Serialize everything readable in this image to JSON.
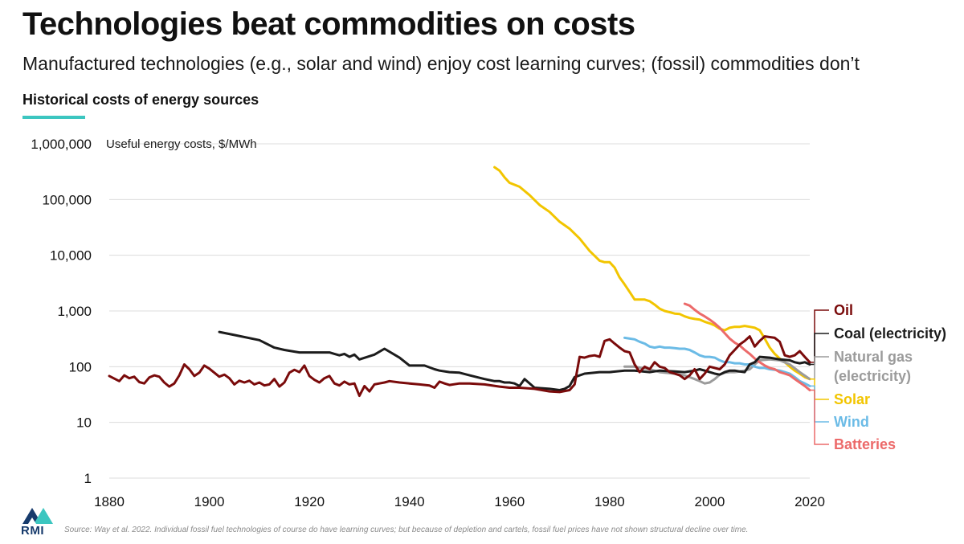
{
  "title": "Technologies beat commodities on costs",
  "subtitle": "Manufactured technologies (e.g., solar and wind) enjoy cost learning curves; (fossil) commodities don’t",
  "section_title": "Historical costs of energy sources",
  "accent_color": "#3cc6c0",
  "logo_text": "RMI",
  "source": "Source: Way et al. 2022. Individual fossil fuel technologies of course do have learning curves; but because of depletion and cartels, fossil fuel prices have not shown structural decline over time.",
  "chart_data": {
    "type": "line",
    "title": "Historical costs of energy sources",
    "ylabel": "Useful energy costs, $/MWh",
    "xlabel": "",
    "yscale": "log",
    "xlim": [
      1880,
      2020
    ],
    "ylim": [
      1,
      1000000
    ],
    "grid": "horizontal",
    "legend": "end-of-line labels at right",
    "x_ticks": [
      "1880",
      "1900",
      "1920",
      "1940",
      "1960",
      "1980",
      "2000",
      "2020"
    ],
    "y_ticks": [
      "1,000,000",
      "100,000",
      "10,000",
      "1,000",
      "100",
      "10",
      "1"
    ],
    "y_tick_values": [
      1000000,
      100000,
      10000,
      1000,
      100,
      10,
      1
    ],
    "series": [
      {
        "name": "Oil",
        "color": "#7a0b0b",
        "x": [
          1880,
          1882,
          1883,
          1884,
          1885,
          1886,
          1887,
          1888,
          1889,
          1890,
          1891,
          1892,
          1893,
          1894,
          1895,
          1896,
          1897,
          1898,
          1899,
          1900,
          1902,
          1903,
          1904,
          1905,
          1906,
          1907,
          1908,
          1909,
          1910,
          1911,
          1912,
          1913,
          1914,
          1915,
          1916,
          1917,
          1918,
          1919,
          1920,
          1921,
          1922,
          1923,
          1924,
          1925,
          1926,
          1927,
          1928,
          1929,
          1930,
          1931,
          1932,
          1933,
          1934,
          1935,
          1936,
          1938,
          1940,
          1942,
          1944,
          1945,
          1946,
          1947,
          1948,
          1950,
          1952,
          1955,
          1958,
          1960,
          1962,
          1965,
          1968,
          1970,
          1972,
          1973,
          1974,
          1975,
          1976,
          1977,
          1978,
          1979,
          1980,
          1981,
          1982,
          1983,
          1984,
          1985,
          1986,
          1987,
          1988,
          1989,
          1990,
          1991,
          1992,
          1993,
          1994,
          1995,
          1996,
          1997,
          1998,
          1999,
          2000,
          2001,
          2002,
          2003,
          2004,
          2005,
          2006,
          2007,
          2008,
          2009,
          2010,
          2011,
          2012,
          2013,
          2014,
          2015,
          2016,
          2017,
          2018,
          2019,
          2020
        ],
        "values": [
          68,
          55,
          70,
          62,
          66,
          53,
          50,
          64,
          70,
          66,
          52,
          44,
          50,
          70,
          110,
          90,
          68,
          78,
          105,
          92,
          66,
          72,
          62,
          48,
          56,
          52,
          56,
          48,
          52,
          46,
          48,
          60,
          44,
          52,
          78,
          88,
          80,
          105,
          68,
          58,
          52,
          62,
          68,
          50,
          46,
          54,
          48,
          50,
          30,
          45,
          36,
          48,
          50,
          52,
          55,
          52,
          50,
          48,
          46,
          42,
          54,
          50,
          47,
          50,
          50,
          48,
          44,
          42,
          42,
          40,
          36,
          35,
          38,
          48,
          150,
          145,
          155,
          160,
          150,
          290,
          310,
          260,
          220,
          190,
          180,
          110,
          80,
          100,
          90,
          120,
          100,
          95,
          80,
          75,
          70,
          60,
          70,
          90,
          60,
          75,
          100,
          95,
          90,
          110,
          160,
          200,
          250,
          290,
          350,
          230,
          290,
          350,
          340,
          330,
          280,
          160,
          150,
          160,
          190,
          150,
          120
        ]
      },
      {
        "name": "Coal (electricity)",
        "color": "#1c1c1c",
        "x": [
          1902,
          1905,
          1910,
          1913,
          1915,
          1918,
          1920,
          1922,
          1924,
          1925,
          1926,
          1927,
          1928,
          1929,
          1930,
          1933,
          1935,
          1938,
          1940,
          1943,
          1945,
          1946,
          1948,
          1950,
          1952,
          1955,
          1957,
          1958,
          1959,
          1960,
          1961,
          1962,
          1963,
          1965,
          1968,
          1970,
          1971,
          1972,
          1973,
          1975,
          1978,
          1980,
          1983,
          1985,
          1988,
          1990,
          1993,
          1995,
          1997,
          1998,
          1999,
          2000,
          2001,
          2002,
          2003,
          2004,
          2005,
          2006,
          2007,
          2008,
          2009,
          2010,
          2012,
          2014,
          2016,
          2017,
          2018,
          2019,
          2020
        ],
        "values": [
          420,
          370,
          300,
          220,
          200,
          180,
          180,
          180,
          180,
          170,
          160,
          170,
          150,
          165,
          135,
          165,
          210,
          145,
          105,
          105,
          90,
          85,
          80,
          78,
          70,
          60,
          55,
          55,
          52,
          52,
          50,
          45,
          60,
          42,
          40,
          38,
          40,
          45,
          65,
          75,
          80,
          80,
          85,
          85,
          80,
          85,
          82,
          80,
          85,
          90,
          85,
          80,
          75,
          72,
          80,
          85,
          85,
          82,
          80,
          110,
          120,
          150,
          145,
          135,
          130,
          120,
          115,
          120,
          110
        ]
      },
      {
        "name": "Natural gas\n(electricity)",
        "color": "#9b9b9b",
        "x": [
          1983,
          1985,
          1988,
          1990,
          1993,
          1995,
          1997,
          1998,
          1999,
          2000,
          2001,
          2002,
          2003,
          2004,
          2005,
          2006,
          2007,
          2008,
          2009,
          2010,
          2012,
          2014,
          2016,
          2018,
          2020
        ],
        "values": [
          100,
          100,
          90,
          80,
          75,
          70,
          60,
          55,
          50,
          52,
          60,
          72,
          78,
          80,
          80,
          82,
          85,
          90,
          110,
          130,
          135,
          130,
          110,
          80,
          60
        ]
      },
      {
        "name": "Solar",
        "color": "#f2c500",
        "x": [
          1957,
          1958,
          1959,
          1960,
          1962,
          1964,
          1966,
          1968,
          1970,
          1972,
          1974,
          1976,
          1978,
          1979,
          1980,
          1981,
          1982,
          1983,
          1984,
          1985,
          1986,
          1987,
          1988,
          1989,
          1990,
          1991,
          1992,
          1993,
          1994,
          1995,
          1996,
          1997,
          1998,
          1999,
          2000,
          2001,
          2002,
          2003,
          2004,
          2005,
          2006,
          2007,
          2008,
          2009,
          2010,
          2011,
          2012,
          2013,
          2014,
          2015,
          2016,
          2017,
          2018,
          2019,
          2020
        ],
        "values": [
          380000,
          330000,
          250000,
          200000,
          170000,
          120000,
          80000,
          60000,
          40000,
          30000,
          20000,
          12000,
          8000,
          7500,
          7500,
          6000,
          4000,
          3000,
          2200,
          1600,
          1600,
          1600,
          1500,
          1300,
          1100,
          1000,
          950,
          900,
          880,
          800,
          750,
          720,
          700,
          640,
          600,
          550,
          480,
          450,
          500,
          520,
          520,
          540,
          520,
          500,
          450,
          320,
          220,
          170,
          140,
          120,
          100,
          85,
          75,
          65,
          60
        ]
      },
      {
        "name": "Wind",
        "color": "#6bbbe6",
        "x": [
          1983,
          1985,
          1986,
          1987,
          1988,
          1989,
          1990,
          1991,
          1992,
          1993,
          1994,
          1995,
          1996,
          1997,
          1998,
          1999,
          2000,
          2001,
          2002,
          2003,
          2004,
          2005,
          2006,
          2007,
          2008,
          2009,
          2010,
          2011,
          2012,
          2013,
          2014,
          2015,
          2016,
          2017,
          2018,
          2019,
          2020
        ],
        "values": [
          330,
          310,
          280,
          260,
          230,
          220,
          230,
          220,
          220,
          215,
          210,
          210,
          200,
          180,
          160,
          150,
          150,
          145,
          130,
          120,
          120,
          115,
          115,
          110,
          110,
          100,
          95,
          95,
          90,
          88,
          85,
          80,
          75,
          65,
          55,
          50,
          45
        ]
      },
      {
        "name": "Batteries",
        "color": "#ec6a6a",
        "x": [
          1995,
          1996,
          1997,
          1998,
          1999,
          2000,
          2001,
          2002,
          2003,
          2004,
          2005,
          2006,
          2007,
          2008,
          2009,
          2010,
          2011,
          2012,
          2013,
          2014,
          2015,
          2016,
          2017,
          2018,
          2019,
          2020
        ],
        "values": [
          1350,
          1250,
          1050,
          900,
          800,
          700,
          600,
          500,
          400,
          320,
          270,
          240,
          200,
          170,
          140,
          120,
          105,
          95,
          90,
          80,
          75,
          70,
          60,
          52,
          45,
          38
        ]
      }
    ]
  }
}
